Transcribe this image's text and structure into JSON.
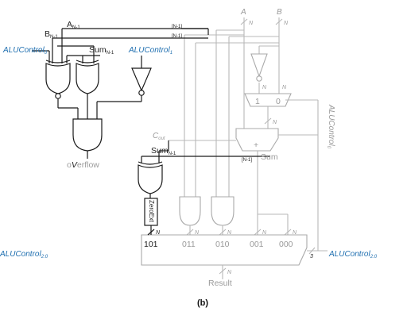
{
  "labels": {
    "a_msb": "A",
    "a_msb_sub": "N-1",
    "b_msb": "B",
    "b_msb_sub": "N-1",
    "sum_msb_top": "Sum",
    "sum_msb_top_sub": "N-1",
    "alucontrol0": "ALUControl",
    "alucontrol0_sub": "0",
    "alucontrol1": "ALUControl",
    "alucontrol1_sub": "1",
    "a_bus": "A",
    "b_bus": "B",
    "bus_width": "N",
    "tap_label": "[N-1]",
    "cout": "C",
    "cout_sub": "out",
    "sum_msb_mid": "Sum",
    "sum_msb_mid_sub": "N-1",
    "overflow_o": "o",
    "overflow_v": "V",
    "overflow_rest": "erflow",
    "sum_out": "Sum",
    "alucontrol0_side": "ALUControl",
    "alucontrol0_side_sub": "0",
    "mux_in_0": "1",
    "mux_in_1": "0",
    "adder_plus": "+",
    "zeroext": "ZeroExt",
    "mux_101": "101",
    "mux_011": "011",
    "mux_010": "010",
    "mux_001": "001",
    "mux_000": "000",
    "result": "Result",
    "select_width": "3",
    "alucontrol_left": "ALUControl",
    "alucontrol_left_sub": "2:0",
    "alucontrol_right": "ALUControl",
    "alucontrol_right_sub": "2:0",
    "caption": "(b)"
  }
}
